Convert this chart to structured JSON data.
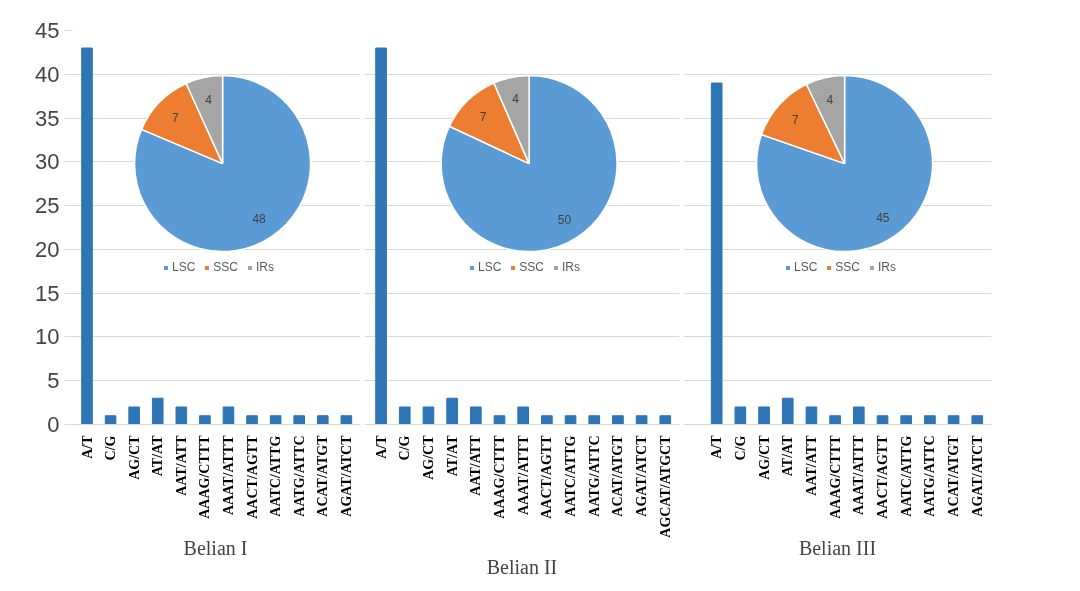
{
  "chart_data": [
    {
      "type": "bar",
      "xlabel": "Belian I",
      "categories": [
        "A/T",
        "C/G",
        "AG/CT",
        "AT/AT",
        "AAT/ATT",
        "AAAG/CTTT",
        "AAAT/ATTT",
        "AACT/AGTT",
        "AATC/ATTG",
        "AATG/ATTC",
        "ACAT/ATGT",
        "AGAT/ATCT"
      ],
      "values": [
        43,
        1,
        2,
        3,
        2,
        1,
        2,
        1,
        1,
        1,
        1,
        1
      ],
      "color": "#2e75b6",
      "ylim": [
        0,
        45
      ],
      "yticks": [
        0,
        5,
        10,
        15,
        20,
        25,
        30,
        35,
        40,
        45
      ],
      "grid": "y"
    },
    {
      "type": "pie",
      "categories": [
        "LSC",
        "SSC",
        "IRs"
      ],
      "values": [
        48,
        7,
        4
      ],
      "colors": [
        "#5b9bd5",
        "#ed7d31",
        "#a5a5a5"
      ],
      "data_labels": true,
      "legend": "bottom"
    },
    {
      "type": "bar",
      "xlabel": "Belian II",
      "categories": [
        "A/T",
        "C/G",
        "AG/CT",
        "AT/AT",
        "AAT/ATT",
        "AAAG/CTTT",
        "AAAT/ATTT",
        "AACT/AGTT",
        "AATC/ATTG",
        "AATG/ATTC",
        "ACAT/ATGT",
        "AGAT/ATCT",
        "AGCAT/ATGCT"
      ],
      "values": [
        43,
        2,
        2,
        3,
        2,
        1,
        2,
        1,
        1,
        1,
        1,
        1,
        1
      ],
      "color": "#2e75b6",
      "ylim": [
        0,
        45
      ],
      "yticks": [
        0,
        5,
        10,
        15,
        20,
        25,
        30,
        35,
        40,
        45
      ],
      "grid": "y",
      "tick_labels": "x"
    },
    {
      "type": "pie",
      "categories": [
        "LSC",
        "SSC",
        "IRs"
      ],
      "values": [
        50,
        7,
        4
      ],
      "colors": [
        "#5b9bd5",
        "#ed7d31",
        "#a5a5a5"
      ],
      "data_labels": true,
      "legend": "bottom"
    },
    {
      "type": "bar",
      "xlabel": "Belian III",
      "categories": [
        "A/T",
        "C/G",
        "AG/CT",
        "AT/AT",
        "AAT/ATT",
        "AAAG/CTTT",
        "AAAT/ATTT",
        "AACT/AGTT",
        "AATC/ATTG",
        "AATG/ATTC",
        "ACAT/ATGT",
        "AGAT/ATCT"
      ],
      "values": [
        39,
        2,
        2,
        3,
        2,
        1,
        2,
        1,
        1,
        1,
        1,
        1
      ],
      "color": "#2e75b6",
      "ylim": [
        0,
        45
      ],
      "yticks": [
        0,
        5,
        10,
        15,
        20,
        25,
        30,
        35,
        40,
        45
      ],
      "grid": "y",
      "tick_labels": "x"
    },
    {
      "type": "pie",
      "categories": [
        "LSC",
        "SSC",
        "IRs"
      ],
      "values": [
        45,
        7,
        4
      ],
      "colors": [
        "#5b9bd5",
        "#ed7d31",
        "#a5a5a5"
      ],
      "data_labels": true,
      "legend": "bottom"
    }
  ]
}
